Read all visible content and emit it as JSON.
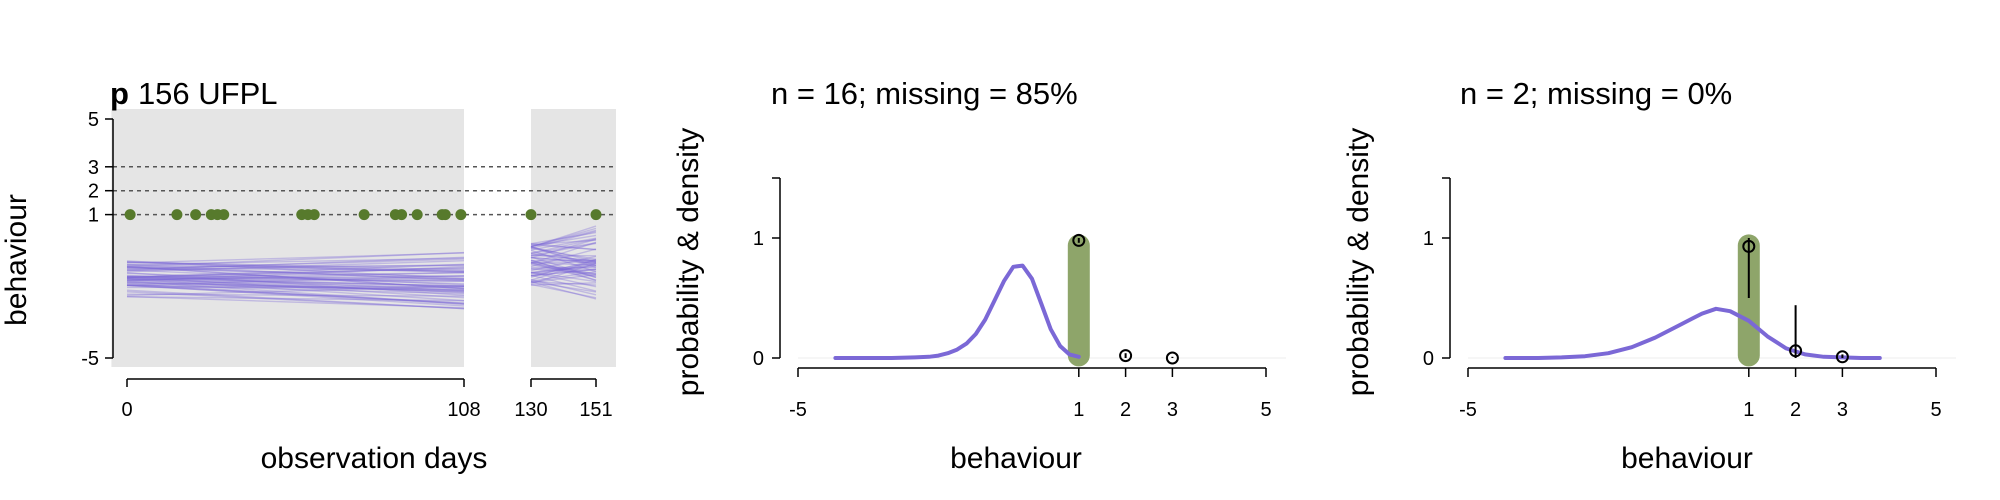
{
  "colors": {
    "background_panel": "#e5e5e5",
    "posterior_lines": "#7b68d6",
    "observed_points": "#577a2c",
    "observed_band": "#8ea56a",
    "density_curve": "#7b68d6",
    "axis": "#000000"
  },
  "chart_data": [
    {
      "type": "scatter",
      "title_bold": "p",
      "title": "156 UFPL",
      "xlabel": "observation days",
      "ylabel": "behaviour",
      "x_ticks": [
        0,
        108,
        130,
        151
      ],
      "y_ticks": [
        5,
        3,
        2,
        1,
        -5
      ],
      "ylim": [
        -5,
        5
      ],
      "shaded_regions": [
        [
          -5,
          108
        ],
        [
          130,
          156
        ]
      ],
      "reference_lines": [
        1,
        2,
        3
      ],
      "observed_days": [
        1,
        16,
        22,
        27,
        29,
        31,
        56,
        58,
        60,
        76,
        86,
        88,
        93,
        101,
        102,
        107,
        130,
        151
      ],
      "observed_values": [
        1,
        1,
        1,
        1,
        1,
        1,
        1,
        1,
        1,
        1,
        1,
        1,
        1,
        1,
        1,
        1,
        1,
        1
      ],
      "posterior_line_count": 60
    },
    {
      "type": "line",
      "title": "n = 16; missing = 85%",
      "xlabel": "behaviour",
      "ylabel": "probability & density",
      "x_ticks": [
        -5,
        1,
        2,
        3,
        5
      ],
      "y_ticks": [
        0,
        1
      ],
      "xlim": [
        -5,
        5
      ],
      "ylim": [
        0,
        1.5
      ],
      "highlight_x": 1,
      "density": {
        "x": [
          -4.2,
          -3.5,
          -3.0,
          -2.5,
          -2.2,
          -2.0,
          -1.8,
          -1.6,
          -1.4,
          -1.2,
          -1.0,
          -0.8,
          -0.6,
          -0.4,
          -0.2,
          0.0,
          0.2,
          0.4,
          0.6,
          0.8,
          1.0
        ],
        "y": [
          0.0,
          0.0,
          0.0,
          0.005,
          0.01,
          0.02,
          0.04,
          0.07,
          0.12,
          0.2,
          0.32,
          0.48,
          0.64,
          0.76,
          0.77,
          0.66,
          0.45,
          0.24,
          0.1,
          0.03,
          0.01
        ]
      },
      "points": [
        {
          "x": 1,
          "y": 0.98,
          "lower": 0.96,
          "upper": 1.0
        },
        {
          "x": 2,
          "y": 0.02,
          "lower": 0.0,
          "upper": 0.04
        },
        {
          "x": 3,
          "y": 0.0,
          "lower": 0.0,
          "upper": 0.01
        }
      ]
    },
    {
      "type": "line",
      "title": "n = 2; missing = 0%",
      "xlabel": "behaviour",
      "ylabel": "probability & density",
      "x_ticks": [
        -5,
        1,
        2,
        3,
        5
      ],
      "y_ticks": [
        0,
        1
      ],
      "xlim": [
        -5,
        5
      ],
      "ylim": [
        0,
        1.5
      ],
      "highlight_x": 1,
      "density": {
        "x": [
          -4.2,
          -3.5,
          -3.0,
          -2.5,
          -2.0,
          -1.5,
          -1.0,
          -0.5,
          -0.2,
          0.0,
          0.3,
          0.6,
          1.0,
          1.4,
          1.8,
          2.2,
          2.6,
          3.0,
          3.4,
          3.8
        ],
        "y": [
          0.0,
          0.0,
          0.005,
          0.015,
          0.04,
          0.09,
          0.17,
          0.27,
          0.33,
          0.37,
          0.41,
          0.39,
          0.31,
          0.18,
          0.08,
          0.03,
          0.01,
          0.005,
          0.0,
          0.0
        ]
      },
      "points": [
        {
          "x": 1,
          "y": 0.93,
          "lower": 0.5,
          "upper": 1.0
        },
        {
          "x": 2,
          "y": 0.06,
          "lower": 0.0,
          "upper": 0.44
        },
        {
          "x": 3,
          "y": 0.01,
          "lower": 0.0,
          "upper": 0.03
        }
      ]
    }
  ]
}
